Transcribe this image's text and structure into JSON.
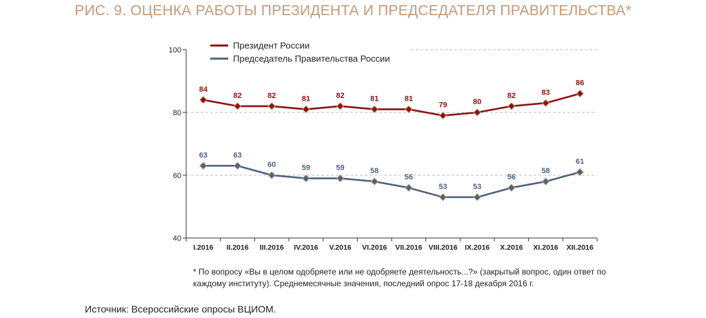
{
  "title": "РИС. 9. ОЦЕНКА РАБОТЫ ПРЕЗИДЕНТА И ПРЕДСЕДАТЕЛЯ ПРАВИТЕЛЬСТВА*",
  "footnote": "* По вопросу «Вы в целом одобряете или не одобряете деятельность...?» (закрытый вопрос, один ответ по каждому институту). Среднемесячные значения, последний опрос 17-18 декабря 2016 г.",
  "source": "Источник: Всероссийские опросы ВЦИОМ.",
  "colors": {
    "president": "#8b1414",
    "premier": "#4d6380",
    "marker_outline": "#c8a070",
    "title": "#c39a78"
  },
  "chart_data": {
    "type": "line",
    "title": "РИС. 9. ОЦЕНКА РАБОТЫ ПРЕЗИДЕНТА И ПРЕДСЕДАТЕЛЯ ПРАВИТЕЛЬСТВА*",
    "categories": [
      "I.2016",
      "II.2016",
      "III.2016",
      "IV.2016",
      "V.2016",
      "VI.2016",
      "VII.2016",
      "VIII.2016",
      "IX.2016",
      "X.2016",
      "XI.2016",
      "XII.2016"
    ],
    "ylim": [
      40,
      100
    ],
    "yticks": [
      40,
      60,
      80,
      100
    ],
    "grid": true,
    "legend_position": "top-left",
    "xlabel": "",
    "ylabel": "",
    "series": [
      {
        "name": "Президент России",
        "color": "#8b1414",
        "values": [
          84,
          82,
          82,
          81,
          82,
          81,
          81,
          79,
          80,
          82,
          83,
          86
        ]
      },
      {
        "name": "Председатель Правительства России",
        "color": "#4d6380",
        "values": [
          63,
          63,
          60,
          59,
          59,
          58,
          56,
          53,
          53,
          56,
          58,
          61
        ]
      }
    ]
  }
}
